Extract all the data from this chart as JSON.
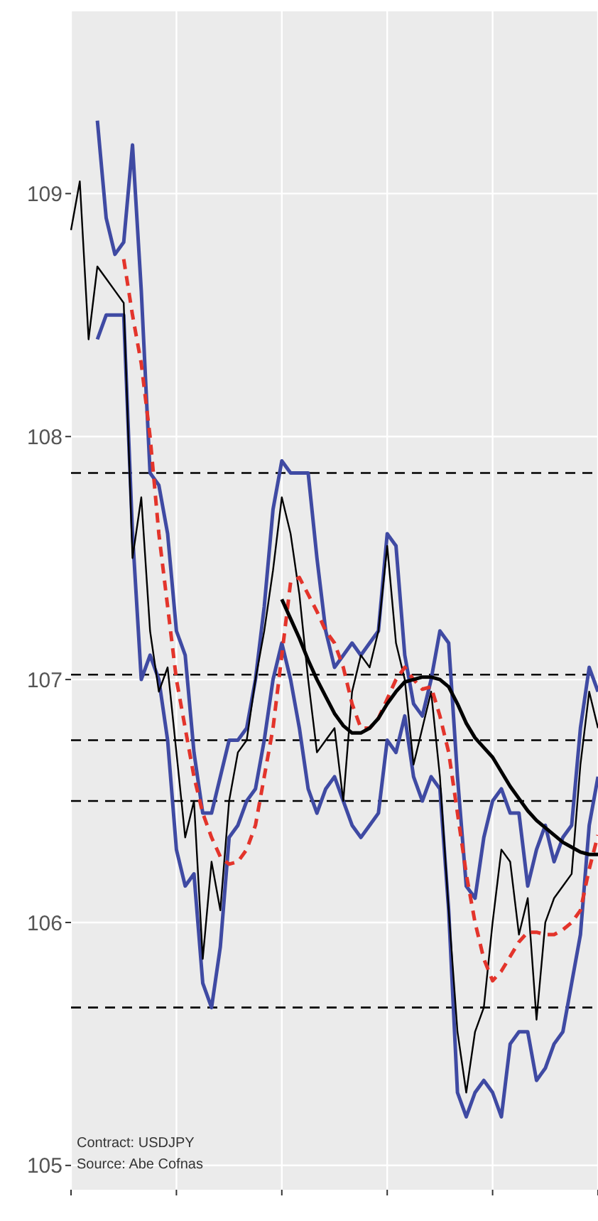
{
  "chart_data": {
    "type": "line",
    "categories": [
      null,
      null,
      null,
      null,
      null,
      null,
      null,
      null,
      null,
      null,
      null,
      null,
      null,
      null,
      null,
      null,
      null,
      null,
      null,
      null,
      null,
      null,
      null,
      null,
      null,
      null,
      null,
      null,
      null,
      null,
      null,
      null,
      null,
      null,
      null,
      null,
      null,
      null,
      null,
      null,
      null,
      null,
      null,
      null,
      null,
      null,
      null,
      null,
      null,
      null,
      null,
      null,
      null,
      null,
      null,
      null,
      null,
      null,
      null,
      null,
      null
    ],
    "series": [
      {
        "color": "#3f4aa3",
        "values": [
          null,
          null,
          null,
          109.3,
          108.9,
          108.75,
          108.8,
          109.2,
          108.6,
          107.85,
          107.8,
          107.6,
          107.2,
          107.1,
          106.7,
          106.45,
          106.45,
          106.6,
          106.75,
          106.75,
          106.8,
          107.0,
          107.3,
          107.7,
          107.9,
          107.85,
          107.85,
          107.85,
          107.5,
          107.2,
          107.05,
          107.1,
          107.15,
          107.1,
          107.15,
          107.2,
          107.6,
          107.55,
          107.1,
          106.9,
          106.85,
          107.0,
          107.2,
          107.15,
          106.6,
          106.15,
          106.1,
          106.35,
          106.5,
          106.55,
          106.45,
          106.45,
          106.15,
          106.3,
          106.4,
          106.25,
          106.35,
          106.4,
          106.8,
          107.05,
          106.95
        ]
      },
      {
        "color": "#3f4aa3",
        "values": [
          null,
          null,
          null,
          108.4,
          108.5,
          108.5,
          108.5,
          107.6,
          107.0,
          107.1,
          107.0,
          106.75,
          106.3,
          106.15,
          106.2,
          105.75,
          105.65,
          105.9,
          106.35,
          106.4,
          106.5,
          106.55,
          106.75,
          107.0,
          107.15,
          107.0,
          106.8,
          106.55,
          106.45,
          106.55,
          106.6,
          106.5,
          106.4,
          106.35,
          106.4,
          106.45,
          106.75,
          106.7,
          106.85,
          106.6,
          106.5,
          106.6,
          106.55,
          106.05,
          105.3,
          105.2,
          105.3,
          105.35,
          105.3,
          105.2,
          105.5,
          105.55,
          105.55,
          105.35,
          105.4,
          105.5,
          105.55,
          105.75,
          105.95,
          106.4,
          106.6
        ]
      },
      {
        "color": "#000000",
        "values": [
          108.85,
          109.05,
          108.4,
          108.7,
          108.65,
          108.6,
          108.55,
          107.5,
          107.75,
          107.2,
          106.95,
          107.05,
          106.7,
          106.35,
          106.5,
          105.85,
          106.25,
          106.05,
          106.5,
          106.7,
          106.75,
          107.0,
          107.2,
          107.45,
          107.75,
          107.6,
          107.35,
          107.0,
          106.7,
          106.75,
          106.8,
          106.5,
          106.95,
          107.1,
          107.05,
          107.2,
          107.55,
          107.15,
          107.0,
          106.65,
          106.8,
          106.95,
          106.6,
          106.05,
          105.55,
          105.3,
          105.55,
          105.65,
          106.0,
          106.3,
          106.25,
          105.95,
          106.1,
          105.6,
          106.0,
          106.1,
          106.15,
          106.2,
          106.65,
          106.95,
          106.8
        ]
      },
      {
        "color": "#e3342b",
        "line_style": "dashed",
        "values": [
          null,
          null,
          null,
          null,
          null,
          null,
          108.73,
          108.5,
          108.3,
          108.0,
          107.6,
          107.3,
          107.0,
          106.8,
          106.6,
          106.45,
          106.35,
          106.27,
          106.24,
          106.25,
          106.3,
          106.4,
          106.6,
          106.8,
          107.1,
          107.4,
          107.42,
          107.35,
          107.28,
          107.2,
          107.15,
          107.05,
          106.9,
          106.8,
          106.8,
          106.84,
          106.92,
          107.0,
          107.05,
          107.0,
          106.96,
          106.97,
          106.85,
          106.7,
          106.45,
          106.2,
          106.0,
          105.85,
          105.76,
          105.8,
          105.86,
          105.92,
          105.96,
          105.96,
          105.95,
          105.95,
          105.97,
          106.0,
          106.05,
          106.22,
          106.36
        ]
      },
      {
        "color": "#000000",
        "values": [
          null,
          null,
          null,
          null,
          null,
          null,
          null,
          null,
          null,
          null,
          null,
          null,
          null,
          null,
          null,
          null,
          null,
          null,
          null,
          null,
          null,
          null,
          null,
          null,
          107.33,
          107.25,
          107.17,
          107.08,
          107.0,
          106.93,
          106.86,
          106.81,
          106.78,
          106.78,
          106.8,
          106.84,
          106.9,
          106.95,
          106.99,
          107.0,
          107.01,
          107.01,
          107.0,
          106.97,
          106.9,
          106.82,
          106.76,
          106.72,
          106.68,
          106.62,
          106.56,
          106.51,
          106.46,
          106.42,
          106.39,
          106.36,
          106.33,
          106.31,
          106.29,
          106.28,
          106.28
        ]
      }
    ],
    "ylim": [
      104.9,
      109.75
    ],
    "yticks": [
      105,
      106,
      107,
      108,
      109
    ],
    "grid": true,
    "line_style": "solid",
    "ref_lines": [
      {
        "axis": "y",
        "value": 107.85,
        "color": "#000000",
        "line_style": "dashed"
      },
      {
        "axis": "y",
        "value": 107.02,
        "color": "#000000",
        "line_style": "dashed"
      },
      {
        "axis": "y",
        "value": 106.75,
        "color": "#000000",
        "line_style": "dashed"
      },
      {
        "axis": "y",
        "value": 106.5,
        "color": "#000000",
        "line_style": "dashed"
      },
      {
        "axis": "y",
        "value": 105.65,
        "color": "#000000",
        "line_style": "dashed"
      }
    ],
    "annotations": [
      "Contract: USDJPY",
      "Source: Abe Cofnas"
    ]
  }
}
